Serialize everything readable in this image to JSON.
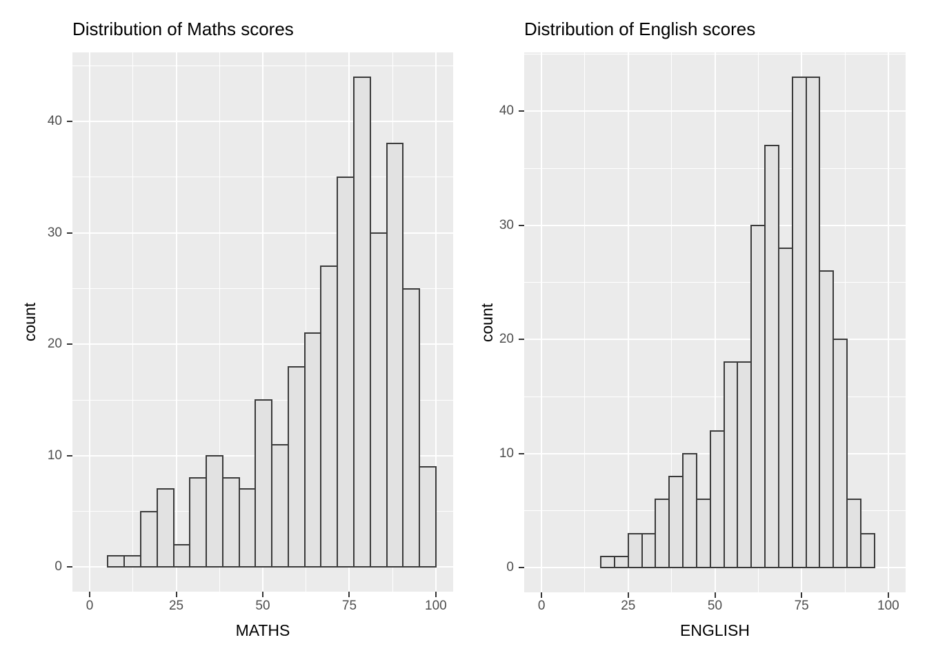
{
  "figure_title": "",
  "colors": {
    "background": "#FFFFFF",
    "panel_bg": "#EBEBEB",
    "grid_major": "#FFFFFF",
    "grid_minor": "#FFFFFF",
    "bar_fill": "#E2E2E2",
    "bar_border": "#3A3A3A",
    "tick_mark": "#333333",
    "tick_label": "#4D4D4D",
    "text": "#000000"
  },
  "chart_data": [
    {
      "type": "bar",
      "subtype": "histogram",
      "title": "Distribution of Maths scores",
      "xlabel": "MATHS",
      "ylabel": "count",
      "bin_start": 5.25,
      "bin_width": 4.7375,
      "counts": [
        1,
        1,
        5,
        7,
        2,
        8,
        10,
        8,
        7,
        15,
        11,
        18,
        21,
        27,
        35,
        44,
        30,
        38,
        25,
        9
      ],
      "x_ticks": [
        0,
        25,
        50,
        75,
        100
      ],
      "y_ticks": [
        0,
        10,
        20,
        30,
        40
      ],
      "x_minor_ticks": [
        12.5,
        37.5,
        62.5,
        87.5
      ],
      "y_minor_ticks": [
        5,
        15,
        25,
        35,
        45
      ],
      "xlim": [
        -5,
        105
      ],
      "ylim": [
        -2.2,
        46.2
      ],
      "grid": "on",
      "legend": "none"
    },
    {
      "type": "bar",
      "subtype": "histogram",
      "title": "Distribution of English scores",
      "xlabel": "ENGLISH",
      "ylabel": "count",
      "bin_start": 17.1,
      "bin_width": 3.945,
      "counts": [
        1,
        1,
        3,
        3,
        6,
        8,
        10,
        6,
        12,
        18,
        18,
        30,
        37,
        28,
        43,
        43,
        26,
        20,
        6,
        3
      ],
      "x_ticks": [
        0,
        25,
        50,
        75,
        100
      ],
      "y_ticks": [
        0,
        10,
        20,
        30,
        40
      ],
      "x_minor_ticks": [
        12.5,
        37.5,
        62.5,
        87.5
      ],
      "y_minor_ticks": [
        5,
        15,
        25,
        35,
        45
      ],
      "xlim": [
        -5,
        105
      ],
      "ylim": [
        -2.15,
        45.15
      ],
      "grid": "on",
      "legend": "none"
    }
  ]
}
